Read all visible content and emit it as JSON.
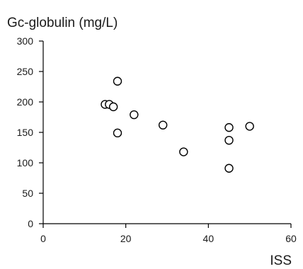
{
  "chart_data": {
    "type": "scatter",
    "ylabel": "Gc-globulin (mg/L)",
    "xlabel": "ISS",
    "xlim": [
      0,
      60
    ],
    "ylim": [
      0,
      300
    ],
    "x_ticks": [
      0,
      20,
      40,
      60
    ],
    "y_ticks": [
      0,
      50,
      100,
      150,
      200,
      250,
      300
    ],
    "grid": false,
    "series": [
      {
        "x": [
          15,
          16,
          17,
          18,
          18,
          22,
          29,
          34,
          45,
          45,
          45,
          50
        ],
        "y": [
          196,
          196,
          192,
          234,
          149,
          179,
          162,
          118,
          158,
          137,
          91,
          160
        ]
      }
    ]
  }
}
